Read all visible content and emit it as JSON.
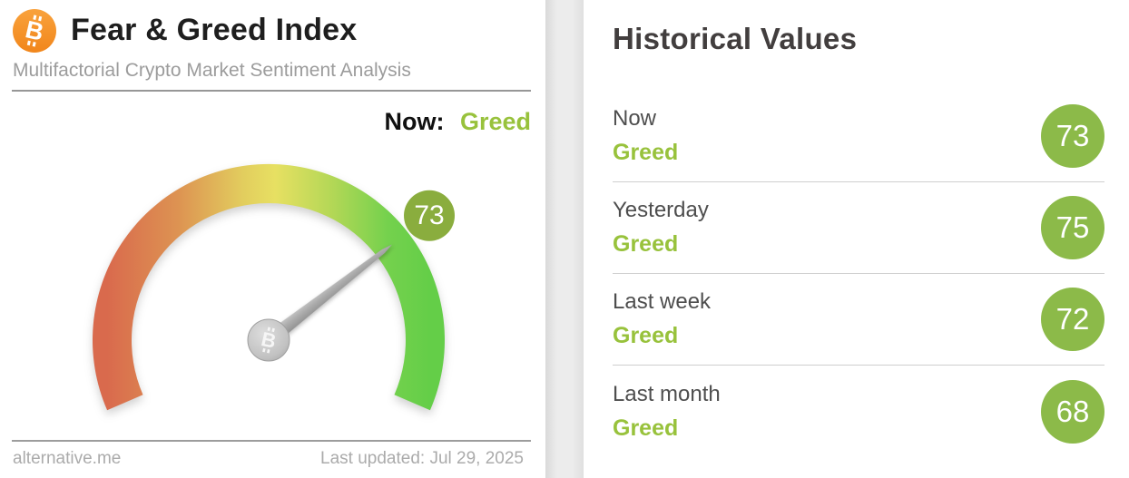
{
  "left_panel": {
    "title": "Fear & Greed Index",
    "subtitle": "Multifactorial Crypto Market Sentiment Analysis",
    "now_label": "Now:",
    "now_value": "Greed",
    "gauge_badge": "73",
    "footer": {
      "site": "alternative.me",
      "last_updated": "Last updated: Jul 29, 2025"
    }
  },
  "right_panel": {
    "heading": "Historical Values",
    "rows": [
      {
        "label": "Now",
        "classification": "Greed",
        "value": "73"
      },
      {
        "label": "Yesterday",
        "classification": "Greed",
        "value": "75"
      },
      {
        "label": "Last week",
        "classification": "Greed",
        "value": "72"
      },
      {
        "label": "Last month",
        "classification": "Greed",
        "value": "68"
      }
    ]
  },
  "colors": {
    "bitcoin_orange": "#f7931a",
    "greed_text_green": "#98c23c",
    "gauge_badge_green": "#8aad3e",
    "list_badge_green": "#8cba49",
    "arc_red": "#d96a4d",
    "arc_orange": "#dd9352",
    "arc_yellow": "#e7e062",
    "arc_green": "#64ce48",
    "needle_gray": "#a3a3a3"
  },
  "chart_data": {
    "type": "gauge",
    "title": "Fear & Greed Index",
    "value": 73,
    "min": 0,
    "max": 100,
    "classification": "Greed",
    "scale_note": "0 = Extreme Fear (red, left end), 100 = Extreme Greed (green, right end), arc sweeps ~227 degrees",
    "historical": [
      {
        "period": "Now",
        "value": 73,
        "classification": "Greed"
      },
      {
        "period": "Yesterday",
        "value": 75,
        "classification": "Greed"
      },
      {
        "period": "Last week",
        "value": 72,
        "classification": "Greed"
      },
      {
        "period": "Last month",
        "value": 68,
        "classification": "Greed"
      }
    ]
  }
}
